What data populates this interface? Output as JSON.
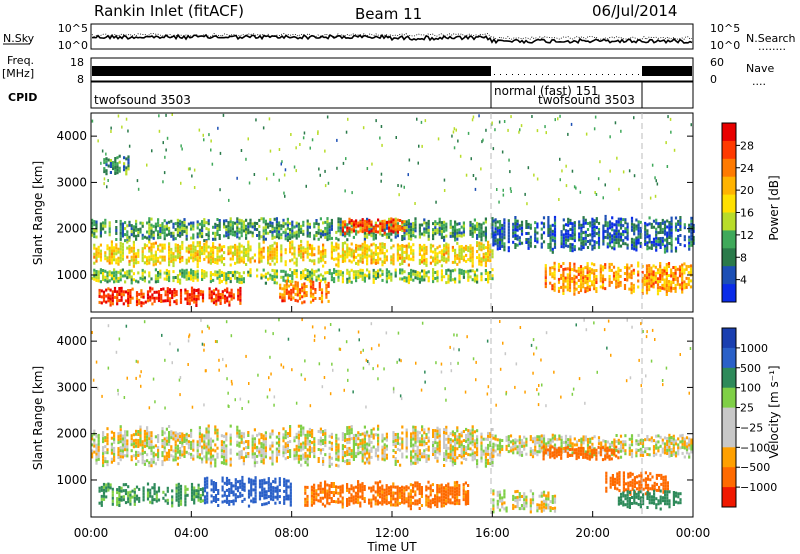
{
  "header": {
    "station": "Rankin Inlet (fitACF)",
    "beam": "Beam 11",
    "date": "06/Jul/2014"
  },
  "noise_panel": {
    "left_label": "N.Sky",
    "right_label": "N.Search",
    "right_line": "........",
    "left_ticks": [
      "10^5",
      "10^0"
    ],
    "right_ticks": [
      "10^5",
      "10^0"
    ]
  },
  "freq_panel": {
    "left_label_1": "Freq.",
    "left_label_2": "[MHz]",
    "right_label": "Nave",
    "right_line": "....",
    "left_ticks": [
      "18",
      "8"
    ],
    "right_ticks": [
      "60",
      "0"
    ]
  },
  "cpid_panel": {
    "label": "CPID",
    "modes": [
      {
        "name": "twofsound 3503",
        "start_h": 0,
        "end_h": 16
      },
      {
        "name": "normal (fast) 151",
        "start_h": 16,
        "end_h": 22
      },
      {
        "name": "twofsound 3503",
        "start_h": 16,
        "end_h": 22
      }
    ]
  },
  "x_axis": {
    "label": "Time UT",
    "range_h": [
      0,
      24
    ],
    "ticks": [
      "00:00",
      "04:00",
      "08:00",
      "12:00",
      "16:00",
      "20:00",
      "00:00"
    ]
  },
  "chart_data": [
    {
      "type": "heatmap",
      "name": "power",
      "ylabel": "Slant Range [km]",
      "yticks": [
        "1000",
        "2000",
        "3000",
        "4000"
      ],
      "ylim_km": [
        200,
        4500
      ],
      "colorbar": {
        "label": "Power [dB]",
        "ticks": [
          "28",
          "24",
          "20",
          "16",
          "12",
          "8",
          "4"
        ],
        "colors": [
          "#e80000",
          "#ff3a00",
          "#ff7a00",
          "#ffb300",
          "#ffe000",
          "#b8dc2a",
          "#3fa95a",
          "#2a7a4a",
          "#1c4fb5",
          "#0a2ce8"
        ]
      },
      "bands": [
        {
          "h0": 0.0,
          "h1": 16.0,
          "r0": 1750,
          "r1": 2250,
          "value_db": 10
        },
        {
          "h0": 0.0,
          "h1": 16.0,
          "r0": 1200,
          "r1": 1750,
          "value_db": 18
        },
        {
          "h0": 0.0,
          "h1": 16.0,
          "r0": 850,
          "r1": 1150,
          "value_db": 14
        },
        {
          "h0": 0.3,
          "h1": 6.0,
          "r0": 350,
          "r1": 750,
          "value_db": 28
        },
        {
          "h0": 7.5,
          "h1": 9.5,
          "r0": 400,
          "r1": 900,
          "value_db": 24
        },
        {
          "h0": 16.0,
          "h1": 24.0,
          "r0": 1500,
          "r1": 2300,
          "value_db": 6
        },
        {
          "h0": 18.0,
          "h1": 24.0,
          "r0": 600,
          "r1": 1300,
          "value_db": 22
        },
        {
          "h0": 0.4,
          "h1": 1.5,
          "r0": 3200,
          "r1": 3600,
          "value_db": 9
        },
        {
          "h0": 10.0,
          "h1": 12.5,
          "r0": 1900,
          "r1": 2250,
          "value_db": 26
        }
      ]
    },
    {
      "type": "heatmap",
      "name": "velocity",
      "ylabel": "Slant Range [km]",
      "yticks": [
        "1000",
        "2000",
        "3000",
        "4000"
      ],
      "ylim_km": [
        200,
        4500
      ],
      "colorbar": {
        "label": "Velocity [m s⁻¹]",
        "ticks": [
          "1000",
          "500",
          "100",
          "25",
          "−25",
          "−100",
          "−500",
          "−1000"
        ],
        "colors": [
          "#1a3fb0",
          "#2a60c8",
          "#2e8a5a",
          "#7fcf46",
          "#c8c8c8",
          "#c8c8c8",
          "#ffa000",
          "#ff6a00",
          "#f01800"
        ]
      },
      "bands": [
        {
          "h0": 0.0,
          "h1": 16.0,
          "r0": 1300,
          "r1": 2200,
          "value_ms": 0
        },
        {
          "h0": 16.0,
          "h1": 24.0,
          "r0": 1500,
          "r1": 2000,
          "value_ms": 0
        },
        {
          "h0": 0.3,
          "h1": 4.5,
          "r0": 450,
          "r1": 950,
          "value_ms": 150
        },
        {
          "h0": 4.5,
          "h1": 8.0,
          "r0": 450,
          "r1": 1100,
          "value_ms": 400
        },
        {
          "h0": 8.5,
          "h1": 15.0,
          "r0": 400,
          "r1": 1000,
          "value_ms": -200
        },
        {
          "h0": 16.0,
          "h1": 18.5,
          "r0": 300,
          "r1": 800,
          "value_ms": 0
        },
        {
          "h0": 18.0,
          "h1": 21.0,
          "r0": 1450,
          "r1": 1750,
          "value_ms": -250
        },
        {
          "h0": 20.5,
          "h1": 23.0,
          "r0": 700,
          "r1": 1200,
          "value_ms": -300
        },
        {
          "h0": 21.0,
          "h1": 23.5,
          "r0": 400,
          "r1": 800,
          "value_ms": 200
        }
      ]
    }
  ]
}
